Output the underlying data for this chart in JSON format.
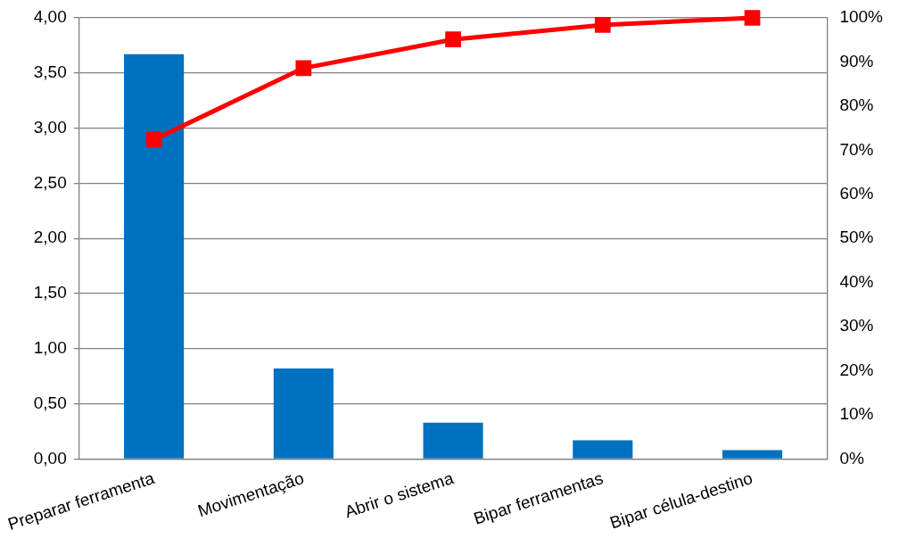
{
  "chart_data": {
    "type": "bar",
    "categories": [
      "Preparar ferramenta",
      "Movimentação",
      "Abrir o sistema",
      "Bipar ferramentas",
      "Bipar célula-destino"
    ],
    "series": [
      {
        "color": "#0070c0",
        "values": [
          3.67,
          0.82,
          0.33,
          0.17,
          0.08
        ]
      },
      {
        "type": "line",
        "axis": "y2",
        "color": "#ff0000",
        "values": [
          72.4,
          88.6,
          95.1,
          98.4,
          100
        ]
      }
    ],
    "ylim": [
      0,
      4
    ],
    "yticks": [
      {
        "value": 0,
        "label": "0,00"
      },
      {
        "value": 0.5,
        "label": "0,50"
      },
      {
        "value": 1,
        "label": "1,00"
      },
      {
        "value": 1.5,
        "label": "1,50"
      },
      {
        "value": 2,
        "label": "2,00"
      },
      {
        "value": 2.5,
        "label": "2,50"
      },
      {
        "value": 3,
        "label": "3,00"
      },
      {
        "value": 3.5,
        "label": "3,50"
      },
      {
        "value": 4,
        "label": "4,00"
      }
    ],
    "y2lim": [
      0,
      100
    ],
    "y2ticks": [
      {
        "value": 0,
        "label": "0%"
      },
      {
        "value": 10,
        "label": "10%"
      },
      {
        "value": 20,
        "label": "20%"
      },
      {
        "value": 30,
        "label": "30%"
      },
      {
        "value": 40,
        "label": "40%"
      },
      {
        "value": 50,
        "label": "50%"
      },
      {
        "value": 60,
        "label": "60%"
      },
      {
        "value": 70,
        "label": "70%"
      },
      {
        "value": 80,
        "label": "80%"
      },
      {
        "value": 90,
        "label": "90%"
      },
      {
        "value": 100,
        "label": "100%"
      }
    ],
    "grid": "y",
    "marker": "square",
    "legend": false
  }
}
